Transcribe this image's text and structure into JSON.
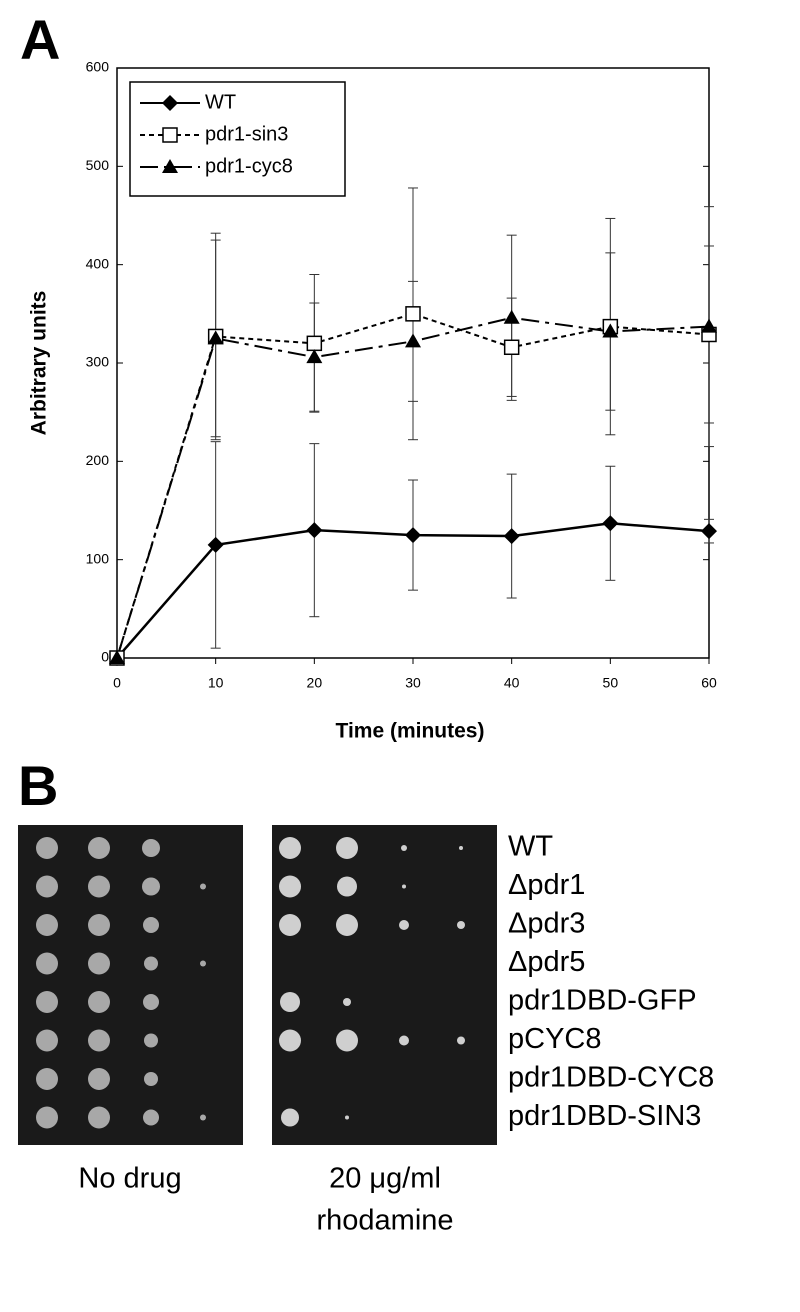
{
  "panel_a": {
    "label": "A"
  },
  "chart_data": {
    "type": "line",
    "y_label": "Arbitrary units",
    "x_label": "Time (minutes)",
    "x": [
      0,
      10,
      20,
      30,
      40,
      50,
      60
    ],
    "xlim": [
      0,
      60
    ],
    "xticks": [
      0,
      10,
      20,
      30,
      40,
      50,
      60
    ],
    "ylim": [
      0,
      600
    ],
    "yticks": [
      0,
      100,
      200,
      300,
      400,
      500,
      600
    ],
    "grid": false,
    "legend": "upper-left",
    "series": [
      {
        "name": "WT",
        "color": "#000000",
        "marker": "diamond",
        "dash": "solid",
        "values": [
          0,
          115,
          130,
          125,
          124,
          137,
          129
        ],
        "errors": [
          0,
          105,
          88,
          56,
          63,
          58,
          12
        ]
      },
      {
        "name": "pdr1-sin3",
        "color": "#000000",
        "marker": "open-square",
        "dash": "short",
        "values": [
          0,
          327,
          320,
          350,
          316,
          337,
          329
        ],
        "errors": [
          0,
          105,
          70,
          128,
          50,
          110,
          90
        ]
      },
      {
        "name": "pdr1-cyc8",
        "color": "#000000",
        "marker": "triangle",
        "dash": "long",
        "values": [
          0,
          325,
          306,
          322,
          346,
          332,
          337
        ],
        "errors": [
          0,
          100,
          55,
          61,
          84,
          80,
          122
        ]
      }
    ]
  },
  "panel_b": {
    "label": "B",
    "strains": [
      "WT",
      "Δpdr1",
      "Δpdr3",
      "Δpdr5",
      "pdr1DBD-GFP",
      "pCYC8",
      "pdr1DBD-CYC8",
      "pdr1DBD-SIN3"
    ],
    "conditions": [
      [
        "No drug"
      ],
      [
        "20 μg/ml",
        "rhodamine"
      ]
    ]
  }
}
